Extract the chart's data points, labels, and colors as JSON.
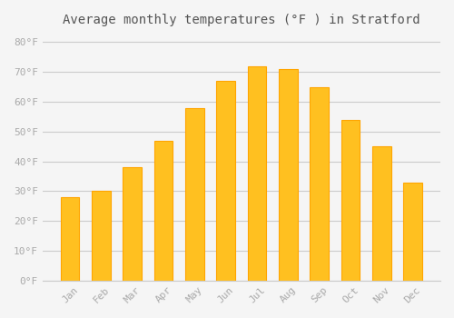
{
  "title": "Average monthly temperatures (°F ) in Stratford",
  "months": [
    "Jan",
    "Feb",
    "Mar",
    "Apr",
    "May",
    "Jun",
    "Jul",
    "Aug",
    "Sep",
    "Oct",
    "Nov",
    "Dec"
  ],
  "values": [
    28,
    30,
    38,
    47,
    58,
    67,
    72,
    71,
    65,
    54,
    45,
    33
  ],
  "bar_color": "#FFC020",
  "bar_edge_color": "#FFA500",
  "background_color": "#F5F5F5",
  "grid_color": "#CCCCCC",
  "text_color": "#AAAAAA",
  "title_color": "#555555",
  "ylim": [
    0,
    82
  ],
  "yticks": [
    0,
    10,
    20,
    30,
    40,
    50,
    60,
    70,
    80
  ]
}
